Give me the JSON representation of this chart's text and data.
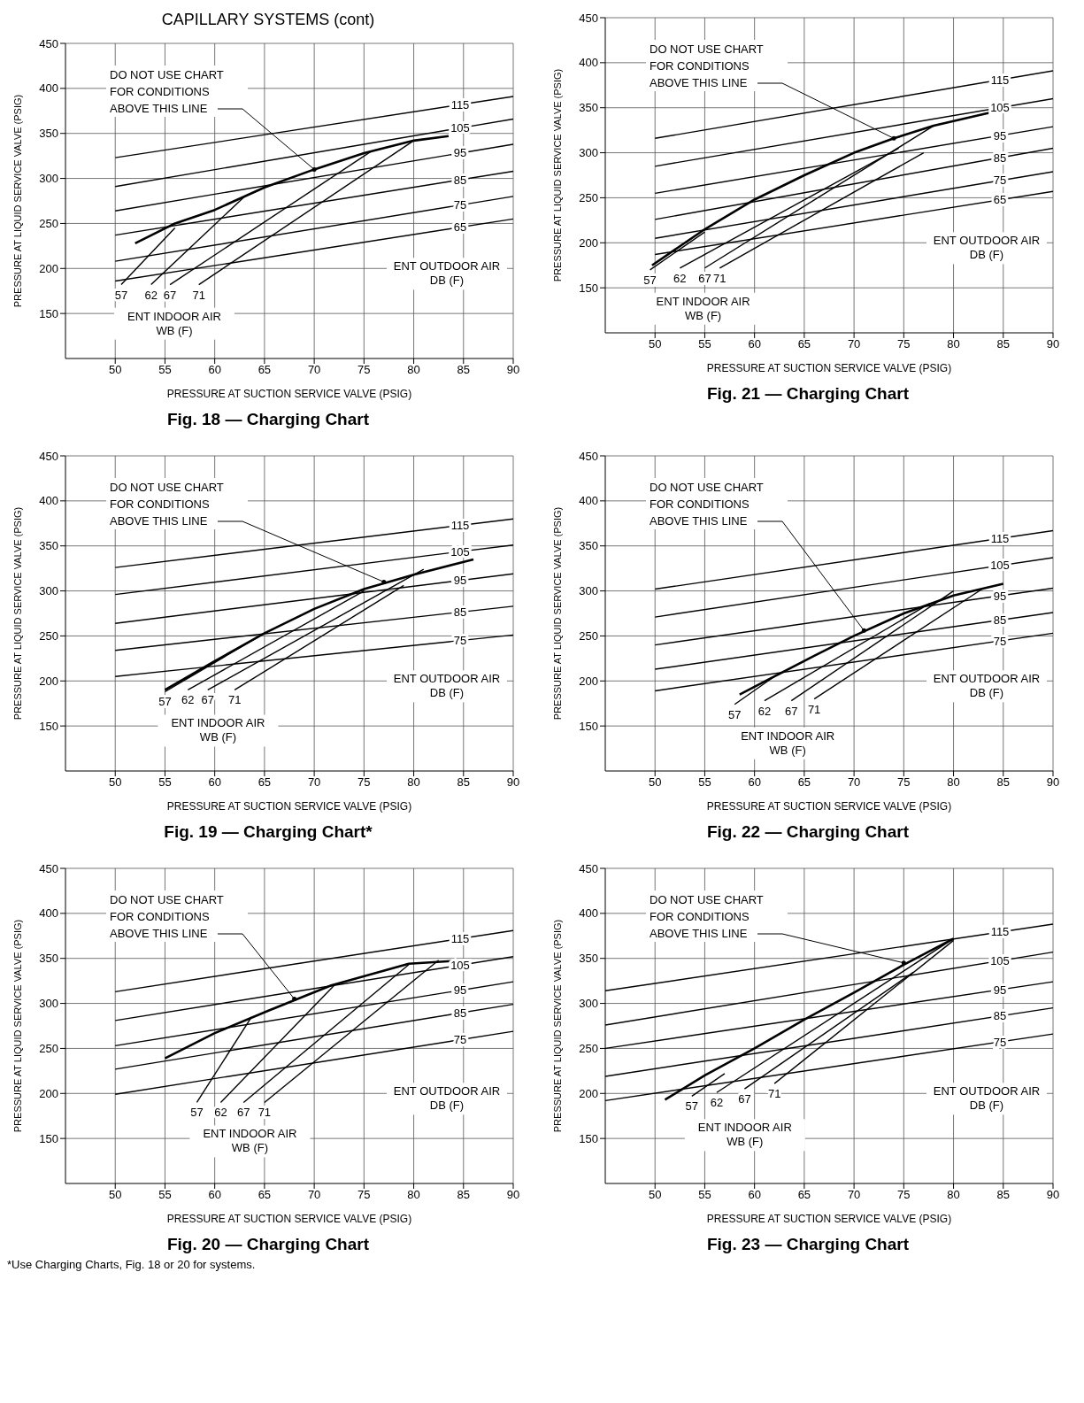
{
  "chart_data": [
    {
      "type": "line",
      "title": "Fig. 18 — Charging Chart",
      "xlabel": "PRESSURE AT SUCTION SERVICE VALVE (PSIG)",
      "ylabel": "PRESSURE AT LIQUID SERVICE VALVE (PSIG)",
      "xlim": [
        45,
        90
      ],
      "ylim": [
        100,
        450
      ],
      "xticks": [
        50,
        55,
        60,
        65,
        70,
        75,
        80,
        85,
        90
      ],
      "yticks": [
        150,
        200,
        250,
        300,
        350,
        400,
        450
      ],
      "grid": true,
      "marker": "none",
      "line_style": "solid",
      "annotations": [
        {
          "text": "DO NOT USE CHART FOR CONDITIONS ABOVE THIS LINE",
          "x": 70,
          "y": 310
        },
        "ENT OUTDOOR AIR DB (F)",
        "ENT INDOOR AIR WB (F)",
        "CAPILLARY SYSTEMS (cont)"
      ],
      "series": [
        {
          "name": "115",
          "color": "#000000",
          "x": [
            50,
            90
          ],
          "values": [
            323,
            391
          ]
        },
        {
          "name": "105",
          "color": "#000000",
          "x": [
            50,
            90
          ],
          "values": [
            291,
            366
          ]
        },
        {
          "name": "95",
          "color": "#000000",
          "x": [
            50,
            90
          ],
          "values": [
            264,
            338
          ]
        },
        {
          "name": "85",
          "color": "#000000",
          "x": [
            50,
            90
          ],
          "values": [
            237,
            308
          ]
        },
        {
          "name": "75",
          "color": "#000000",
          "x": [
            50,
            90
          ],
          "values": [
            208,
            280
          ]
        },
        {
          "name": "65",
          "color": "#000000",
          "x": [
            50,
            90
          ],
          "values": [
            186,
            255
          ]
        },
        {
          "name": "57",
          "color": "#000000",
          "x": [
            50.6,
            56
          ],
          "values": [
            182,
            245
          ]
        },
        {
          "name": "62",
          "color": "#000000",
          "x": [
            53.6,
            63
          ],
          "values": [
            182,
            280
          ]
        },
        {
          "name": "67",
          "color": "#000000",
          "x": [
            55.5,
            75.7
          ],
          "values": [
            182,
            330
          ]
        },
        {
          "name": "71",
          "color": "#000000",
          "x": [
            58.4,
            80
          ],
          "values": [
            182,
            342
          ]
        },
        {
          "color": "#000000",
          "x": [
            52,
            56,
            60,
            65,
            70,
            75,
            80,
            83.5
          ],
          "values": [
            228,
            250,
            265,
            290,
            310,
            328,
            342,
            347
          ]
        }
      ]
    },
    {
      "type": "line",
      "title": "Fig. 21 — Charging Chart",
      "xlabel": "PRESSURE AT SUCTION SERVICE VALVE (PSIG)",
      "ylabel": "PRESSURE AT LIQUID SERVICE VALVE (PSIG)",
      "xlim": [
        45,
        90
      ],
      "ylim": [
        100,
        450
      ],
      "xticks": [
        50,
        55,
        60,
        65,
        70,
        75,
        80,
        85,
        90
      ],
      "yticks": [
        150,
        200,
        250,
        300,
        350,
        400,
        450
      ],
      "grid": true,
      "marker": "none",
      "line_style": "solid",
      "annotations": [
        {
          "text": "DO NOT USE CHART FOR CONDITIONS ABOVE THIS LINE",
          "x": 74,
          "y": 316
        },
        "ENT OUTDOOR AIR DB (F)",
        "ENT INDOOR AIR WB (F)"
      ],
      "series": [
        {
          "name": "115",
          "color": "#000000",
          "x": [
            50,
            90
          ],
          "values": [
            316,
            391
          ]
        },
        {
          "name": "105",
          "color": "#000000",
          "x": [
            50,
            90
          ],
          "values": [
            285,
            360
          ]
        },
        {
          "name": "95",
          "color": "#000000",
          "x": [
            50,
            90
          ],
          "values": [
            255,
            329
          ]
        },
        {
          "name": "85",
          "color": "#000000",
          "x": [
            50,
            90
          ],
          "values": [
            226,
            305
          ]
        },
        {
          "name": "75",
          "color": "#000000",
          "x": [
            50,
            90
          ],
          "values": [
            205,
            279
          ]
        },
        {
          "name": "65",
          "color": "#000000",
          "x": [
            50,
            90
          ],
          "values": [
            187,
            257
          ]
        },
        {
          "name": "57",
          "color": "#000000",
          "x": [
            49.5,
            55
          ],
          "values": [
            170,
            212
          ]
        },
        {
          "name": "62",
          "color": "#000000",
          "x": [
            52.5,
            74.5
          ],
          "values": [
            172,
            305
          ]
        },
        {
          "name": "67",
          "color": "#000000",
          "x": [
            55,
            78
          ],
          "values": [
            172,
            330
          ]
        },
        {
          "name": "71",
          "color": "#000000",
          "x": [
            56.5,
            77
          ],
          "values": [
            172,
            300
          ]
        },
        {
          "color": "#000000",
          "x": [
            49.7,
            55,
            60,
            65,
            70,
            74,
            78,
            85
          ],
          "values": [
            175,
            215,
            248,
            275,
            300,
            316,
            330,
            348
          ]
        }
      ]
    },
    {
      "type": "line",
      "title": "Fig. 19 — Charging Chart*",
      "xlabel": "PRESSURE AT SUCTION SERVICE VALVE (PSIG)",
      "ylabel": "PRESSURE AT LIQUID SERVICE VALVE (PSIG)",
      "xlim": [
        45,
        90
      ],
      "ylim": [
        100,
        450
      ],
      "xticks": [
        50,
        55,
        60,
        65,
        70,
        75,
        80,
        85,
        90
      ],
      "yticks": [
        150,
        200,
        250,
        300,
        350,
        400,
        450
      ],
      "grid": true,
      "marker": "none",
      "line_style": "solid",
      "annotations": [
        {
          "text": "DO NOT USE CHART FOR CONDITIONS ABOVE THIS LINE",
          "x": 77,
          "y": 310
        },
        "ENT OUTDOOR AIR DB (F)",
        "ENT INDOOR AIR WB (F)"
      ],
      "series": [
        {
          "name": "115",
          "color": "#000000",
          "x": [
            50,
            90
          ],
          "values": [
            326,
            380
          ]
        },
        {
          "name": "105",
          "color": "#000000",
          "x": [
            50,
            90
          ],
          "values": [
            296,
            351
          ]
        },
        {
          "name": "95",
          "color": "#000000",
          "x": [
            50,
            90
          ],
          "values": [
            264,
            319
          ]
        },
        {
          "name": "85",
          "color": "#000000",
          "x": [
            50,
            90
          ],
          "values": [
            234,
            283
          ]
        },
        {
          "name": "75",
          "color": "#000000",
          "x": [
            50,
            90
          ],
          "values": [
            205,
            251
          ]
        },
        {
          "name": "57",
          "color": "#000000",
          "x": [
            55,
            65
          ],
          "values": [
            188,
            253
          ]
        },
        {
          "name": "62",
          "color": "#000000",
          "x": [
            57.3,
            75
          ],
          "values": [
            190,
            300
          ]
        },
        {
          "name": "67",
          "color": "#000000",
          "x": [
            59.3,
            81
          ],
          "values": [
            190,
            324
          ]
        },
        {
          "name": "71",
          "color": "#000000",
          "x": [
            62,
            79
          ],
          "values": [
            190,
            306
          ]
        },
        {
          "color": "#000000",
          "x": [
            55,
            60,
            65,
            70,
            75,
            80,
            86
          ],
          "values": [
            190,
            222,
            253,
            280,
            302,
            318,
            335
          ]
        }
      ]
    },
    {
      "type": "line",
      "title": "Fig. 22 — Charging Chart",
      "xlabel": "PRESSURE AT SUCTION SERVICE VALVE (PSIG)",
      "ylabel": "PRESSURE AT LIQUID SERVICE VALVE (PSIG)",
      "xlim": [
        45,
        90
      ],
      "ylim": [
        100,
        450
      ],
      "xticks": [
        50,
        55,
        60,
        65,
        70,
        75,
        80,
        85,
        90
      ],
      "yticks": [
        150,
        200,
        250,
        300,
        350,
        400,
        450
      ],
      "grid": true,
      "marker": "none",
      "line_style": "solid",
      "annotations": [
        {
          "text": "DO NOT USE CHART FOR CONDITIONS ABOVE THIS LINE",
          "x": 71,
          "y": 256
        },
        "ENT OUTDOOR AIR DB (F)",
        "ENT INDOOR AIR WB (F)"
      ],
      "series": [
        {
          "name": "115",
          "color": "#000000",
          "x": [
            50,
            90
          ],
          "values": [
            302,
            367
          ]
        },
        {
          "name": "105",
          "color": "#000000",
          "x": [
            50,
            90
          ],
          "values": [
            271,
            337
          ]
        },
        {
          "name": "95",
          "color": "#000000",
          "x": [
            50,
            90
          ],
          "values": [
            240,
            303
          ]
        },
        {
          "name": "85",
          "color": "#000000",
          "x": [
            50,
            90
          ],
          "values": [
            213,
            276
          ]
        },
        {
          "name": "75",
          "color": "#000000",
          "x": [
            50,
            90
          ],
          "values": [
            189,
            253
          ]
        },
        {
          "name": "57",
          "color": "#000000",
          "x": [
            58,
            62
          ],
          "values": [
            174,
            205
          ]
        },
        {
          "name": "62",
          "color": "#000000",
          "x": [
            61,
            77.6
          ],
          "values": [
            178,
            286
          ]
        },
        {
          "name": "67",
          "color": "#000000",
          "x": [
            63.7,
            80
          ],
          "values": [
            178,
            300
          ]
        },
        {
          "name": "71",
          "color": "#000000",
          "x": [
            66,
            83
          ],
          "values": [
            180,
            303
          ]
        },
        {
          "color": "#000000",
          "x": [
            58.5,
            62,
            66,
            70,
            75,
            80,
            85
          ],
          "values": [
            185,
            205,
            228,
            250,
            275,
            295,
            308
          ]
        }
      ]
    },
    {
      "type": "line",
      "title": "Fig. 20 — Charging Chart",
      "xlabel": "PRESSURE AT SUCTION SERVICE VALVE (PSIG)",
      "ylabel": "PRESSURE AT LIQUID SERVICE VALVE (PSIG)",
      "xlim": [
        45,
        90
      ],
      "ylim": [
        100,
        450
      ],
      "xticks": [
        50,
        55,
        60,
        65,
        70,
        75,
        80,
        85,
        90
      ],
      "yticks": [
        150,
        200,
        250,
        300,
        350,
        400,
        450
      ],
      "grid": true,
      "marker": "none",
      "line_style": "solid",
      "annotations": [
        {
          "text": "DO NOT USE CHART FOR CONDITIONS ABOVE THIS LINE",
          "x": 68,
          "y": 305
        },
        "ENT OUTDOOR AIR DB (F)",
        "ENT INDOOR AIR WB (F)",
        "*Use Charging Charts, Fig. 18 or 20 for systems."
      ],
      "series": [
        {
          "name": "115",
          "color": "#000000",
          "x": [
            50,
            90
          ],
          "values": [
            313,
            381
          ]
        },
        {
          "name": "105",
          "color": "#000000",
          "x": [
            50,
            90
          ],
          "values": [
            281,
            352
          ]
        },
        {
          "name": "95",
          "color": "#000000",
          "x": [
            50,
            90
          ],
          "values": [
            253,
            324
          ]
        },
        {
          "name": "85",
          "color": "#000000",
          "x": [
            50,
            90
          ],
          "values": [
            227,
            299
          ]
        },
        {
          "name": "75",
          "color": "#000000",
          "x": [
            50,
            90
          ],
          "values": [
            199,
            269
          ]
        },
        {
          "name": "57",
          "color": "#000000",
          "x": [
            58.2,
            63.7
          ],
          "values": [
            190,
            285
          ]
        },
        {
          "name": "62",
          "color": "#000000",
          "x": [
            60.6,
            72
          ],
          "values": [
            190,
            320
          ]
        },
        {
          "name": "67",
          "color": "#000000",
          "x": [
            62.9,
            79.5
          ],
          "values": [
            190,
            343
          ]
        },
        {
          "name": "71",
          "color": "#000000",
          "x": [
            65,
            82.5
          ],
          "values": [
            190,
            348
          ]
        },
        {
          "color": "#000000",
          "x": [
            55,
            60,
            65.4,
            71.7,
            79.5,
            85.3
          ],
          "values": [
            239,
            267,
            292,
            320,
            344,
            348
          ]
        }
      ]
    },
    {
      "type": "line",
      "title": "Fig. 23 — Charging Chart",
      "xlabel": "PRESSURE AT SUCTION SERVICE VALVE (PSIG)",
      "ylabel": "PRESSURE AT LIQUID SERVICE VALVE (PSIG)",
      "xlim": [
        45,
        90
      ],
      "ylim": [
        100,
        450
      ],
      "xticks": [
        50,
        55,
        60,
        65,
        70,
        75,
        80,
        85,
        90
      ],
      "yticks": [
        150,
        200,
        250,
        300,
        350,
        400,
        450
      ],
      "grid": true,
      "marker": "none",
      "line_style": "solid",
      "annotations": [
        {
          "text": "DO NOT USE CHART FOR CONDITIONS ABOVE THIS LINE",
          "x": 75,
          "y": 345
        },
        "ENT OUTDOOR AIR DB (F)",
        "ENT INDOOR AIR WB (F)"
      ],
      "series": [
        {
          "name": "115",
          "color": "#000000",
          "x": [
            45,
            90
          ],
          "values": [
            314,
            388
          ]
        },
        {
          "name": "105",
          "color": "#000000",
          "x": [
            45,
            90
          ],
          "values": [
            276,
            357
          ]
        },
        {
          "name": "95",
          "color": "#000000",
          "x": [
            45,
            90
          ],
          "values": [
            250,
            324
          ]
        },
        {
          "name": "85",
          "color": "#000000",
          "x": [
            45,
            90
          ],
          "values": [
            219,
            295
          ]
        },
        {
          "name": "75",
          "color": "#000000",
          "x": [
            45,
            90
          ],
          "values": [
            192,
            266
          ]
        },
        {
          "name": "57",
          "color": "#000000",
          "x": [
            53.7,
            57
          ],
          "values": [
            197,
            222
          ]
        },
        {
          "name": "62",
          "color": "#000000",
          "x": [
            56.2,
            80
          ],
          "values": [
            201,
            372
          ]
        },
        {
          "name": "67",
          "color": "#000000",
          "x": [
            59,
            76
          ],
          "values": [
            205,
            335
          ]
        },
        {
          "name": "71",
          "color": "#000000",
          "x": [
            62,
            80
          ],
          "values": [
            211,
            370
          ]
        },
        {
          "color": "#000000",
          "x": [
            51,
            55,
            60,
            65,
            70,
            75,
            80
          ],
          "values": [
            193,
            220,
            250,
            282,
            312,
            343,
            372
          ]
        }
      ]
    }
  ]
}
